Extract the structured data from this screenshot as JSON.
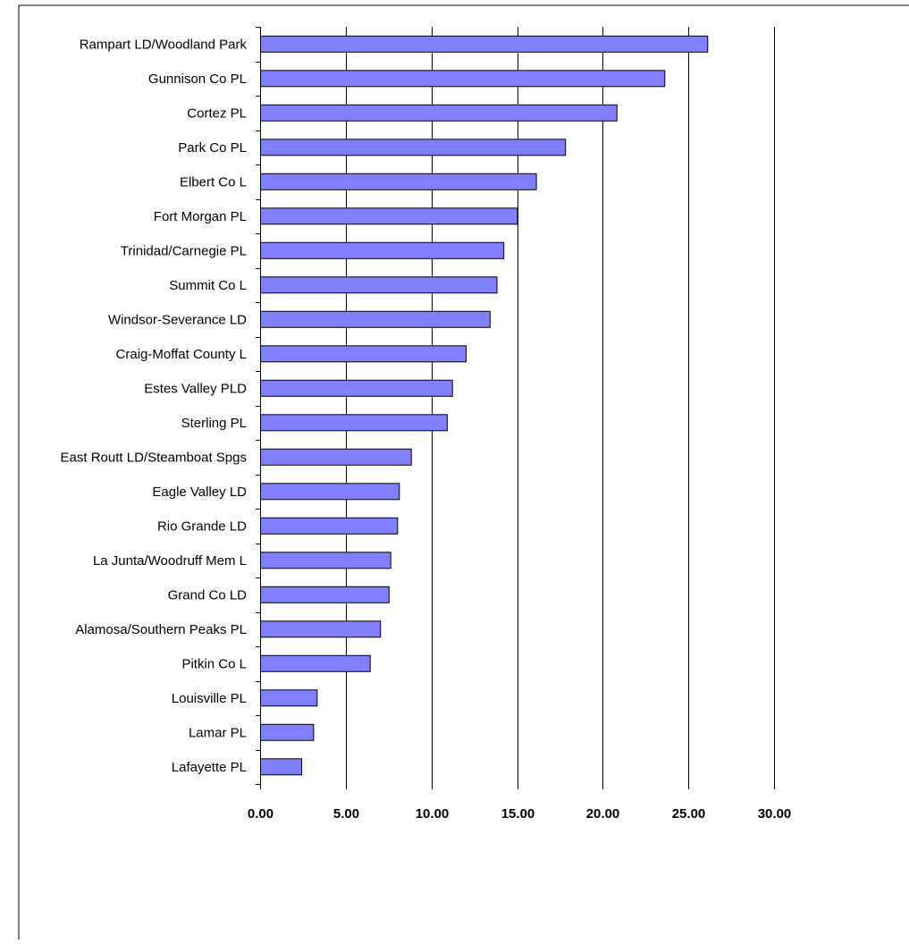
{
  "chart_data": {
    "type": "bar",
    "orientation": "horizontal",
    "title": "",
    "xlabel": "",
    "ylabel": "",
    "xlim": [
      0,
      30
    ],
    "x_ticks": [
      "0.00",
      "5.00",
      "10.00",
      "15.00",
      "20.00",
      "25.00",
      "30.00"
    ],
    "grid": "vertical major gridlines",
    "legend": "none",
    "bar_color": "#8080ff",
    "bar_edge_color": "#000000",
    "categories": [
      "Rampart LD/Woodland Park",
      "Gunnison Co PL",
      "Cortez PL",
      "Park Co PL",
      "Elbert Co L",
      "Fort Morgan PL",
      "Trinidad/Carnegie PL",
      "Summit Co L",
      "Windsor-Severance LD",
      "Craig-Moffat County L",
      "Estes Valley PLD",
      "Sterling PL",
      "East Routt LD/Steamboat Spgs",
      "Eagle Valley LD",
      "Rio Grande LD",
      "La Junta/Woodruff Mem L",
      "Grand Co LD",
      "Alamosa/Southern Peaks PL",
      "Pitkin Co L",
      "Louisville PL",
      "Lamar PL",
      "Lafayette PL"
    ],
    "values": [
      26.1,
      23.6,
      20.8,
      17.8,
      16.1,
      15.0,
      14.2,
      13.8,
      13.4,
      12.0,
      11.2,
      10.9,
      8.8,
      8.1,
      8.0,
      7.6,
      7.5,
      7.0,
      6.4,
      3.3,
      3.1,
      2.4
    ]
  }
}
